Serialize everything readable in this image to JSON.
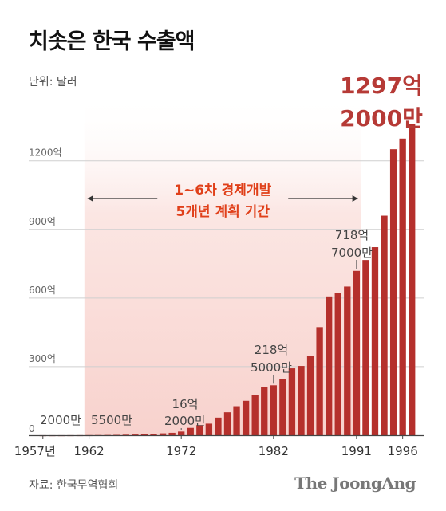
{
  "title": "치솟은 한국 수출액",
  "unit_label": "단위: 달러",
  "source": "자료: 한국무역협회",
  "brand": "The JoongAng",
  "colors": {
    "bar": "#b5302c",
    "band": "#fbe3e0",
    "plan_text": "#e0401a",
    "big_text": "#b63a36"
  },
  "chart_data": {
    "type": "bar",
    "unit": "억 달러",
    "x_start": 1957,
    "x_end": 1997,
    "years": [
      1957,
      1958,
      1959,
      1960,
      1961,
      1962,
      1963,
      1964,
      1965,
      1966,
      1967,
      1968,
      1969,
      1970,
      1971,
      1972,
      1973,
      1974,
      1975,
      1976,
      1977,
      1978,
      1979,
      1980,
      1981,
      1982,
      1983,
      1984,
      1985,
      1986,
      1987,
      1988,
      1989,
      1990,
      1991,
      1992,
      1993,
      1994,
      1995,
      1996,
      1997
    ],
    "values": [
      0.2,
      0.17,
      0.2,
      0.33,
      0.41,
      0.55,
      0.87,
      1.2,
      1.75,
      2.5,
      3.2,
      4.55,
      6.2,
      8.35,
      10.7,
      16.2,
      32.3,
      44.6,
      50.8,
      77.2,
      100.5,
      127.1,
      150.6,
      175.0,
      212.5,
      218.5,
      244.5,
      292.5,
      303.0,
      347.1,
      472.8,
      607.0,
      623.8,
      650.2,
      718.7,
      766.3,
      822.4,
      960.1,
      1250.6,
      1297.2,
      1361.6
    ],
    "y_ticks": [
      "0",
      "300억",
      "600억",
      "900억",
      "1200억"
    ],
    "y_tick_values": [
      0,
      300,
      600,
      900,
      1200
    ],
    "ylim": [
      0,
      1300
    ],
    "x_tick_labels": [
      "1957년",
      "1962",
      "1972",
      "1982",
      "1991",
      "1996"
    ],
    "x_tick_values": [
      1957,
      1962,
      1972,
      1982,
      1991,
      1996
    ],
    "plan_period": {
      "from": 1962,
      "to": 1991,
      "label_line1": "1~6차 경제개발",
      "label_line2": "5개년 계획 기간"
    },
    "annotations": [
      {
        "year": 1957,
        "line1": "2000만",
        "line2": ""
      },
      {
        "year": 1962,
        "line1": "5500만",
        "line2": ""
      },
      {
        "year": 1972,
        "line1": "16억",
        "line2": "2000만"
      },
      {
        "year": 1982,
        "line1": "218억",
        "line2": "5000만"
      },
      {
        "year": 1991,
        "line1": "718억",
        "line2": "7000만"
      },
      {
        "year": 1996,
        "line1": "1297억",
        "line2": "2000만"
      }
    ]
  }
}
